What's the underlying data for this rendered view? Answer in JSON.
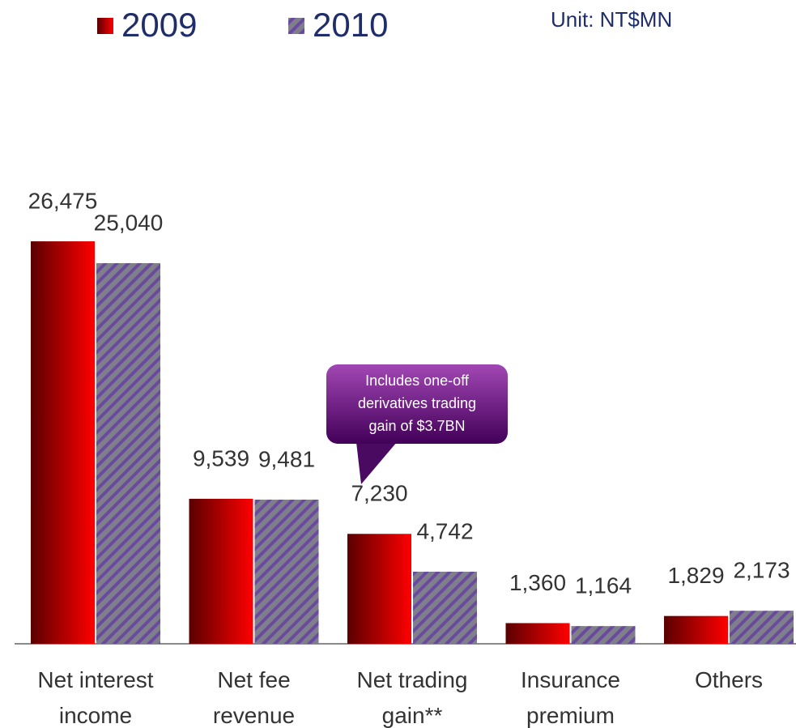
{
  "chart_data": {
    "type": "bar",
    "unit_label": "Unit: NT$MN",
    "annotation": "Includes one-off\nderivatives trading\ngain of $3.7BN",
    "categories": [
      "Net interest\nincome",
      "Net fee\nrevenue",
      "Net trading\ngain**",
      "Insurance\npremium",
      "Others"
    ],
    "series": [
      {
        "name": "2009",
        "color": "#ff0000",
        "values": [
          26475,
          9539,
          7230,
          1360,
          1829
        ],
        "value_labels": [
          "26,475",
          "9,539",
          "7,230",
          "1,360",
          "1,829"
        ]
      },
      {
        "name": "2010",
        "color": "#7f7f8c",
        "values": [
          25040,
          9481,
          4742,
          1164,
          2173
        ],
        "value_labels": [
          "25,040",
          "9,481",
          "4,742",
          "1,164",
          "2,173"
        ]
      }
    ]
  }
}
